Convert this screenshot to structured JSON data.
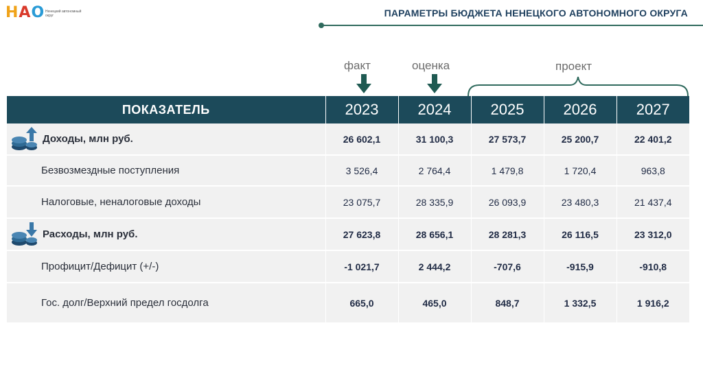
{
  "logo": {
    "letters": [
      "Н",
      "А",
      "О"
    ],
    "subtitle": "Ненецкий автономный округ"
  },
  "page_title": "ПАРАМЕТРЫ БЮДЖЕТА НЕНЕЦКОГО АВТОНОМНОГО ОКРУГА",
  "column_labels": {
    "fact": "факт",
    "estimate": "оценка",
    "project": "проект"
  },
  "table": {
    "header": {
      "indicator": "ПОКАЗАТЕЛЬ",
      "years": [
        "2023",
        "2024",
        "2025",
        "2026",
        "2027"
      ]
    },
    "rows": [
      {
        "name": "Доходы, млн руб.",
        "icon": "coins-arrow-up-icon",
        "values": [
          "26 602,1",
          "31 100,3",
          "27 573,7",
          "25 200,7",
          "22 401,2"
        ]
      },
      {
        "name": "Безвозмездные поступления",
        "values": [
          "3 526,4",
          "2 764,4",
          "1 479,8",
          "1 720,4",
          "963,8"
        ]
      },
      {
        "name": "Налоговые, неналоговые доходы",
        "values": [
          "23 075,7",
          "28 335,9",
          "26 093,9",
          "23 480,3",
          "21 437,4"
        ]
      },
      {
        "name": "Расходы, млн руб.",
        "icon": "coins-arrow-down-icon",
        "values": [
          "27 623,8",
          "28 656,1",
          "28 281,3",
          "26 116,5",
          "23 312,0"
        ]
      },
      {
        "name": "Профицит/Дефицит (+/-)",
        "values": [
          "-1 021,7",
          "2 444,2",
          "-707,6",
          "-915,9",
          "-910,8"
        ]
      },
      {
        "name": "Гос. долг/Верхний предел госдолга",
        "values": [
          "665,0",
          "465,0",
          "848,7",
          "1 332,5",
          "1 916,2"
        ]
      }
    ]
  },
  "colors": {
    "header_bg": "#1c4a5a",
    "row_bg": "#f1f1f1",
    "accent": "#2f6a5d",
    "arrow": "#1f5a52"
  }
}
